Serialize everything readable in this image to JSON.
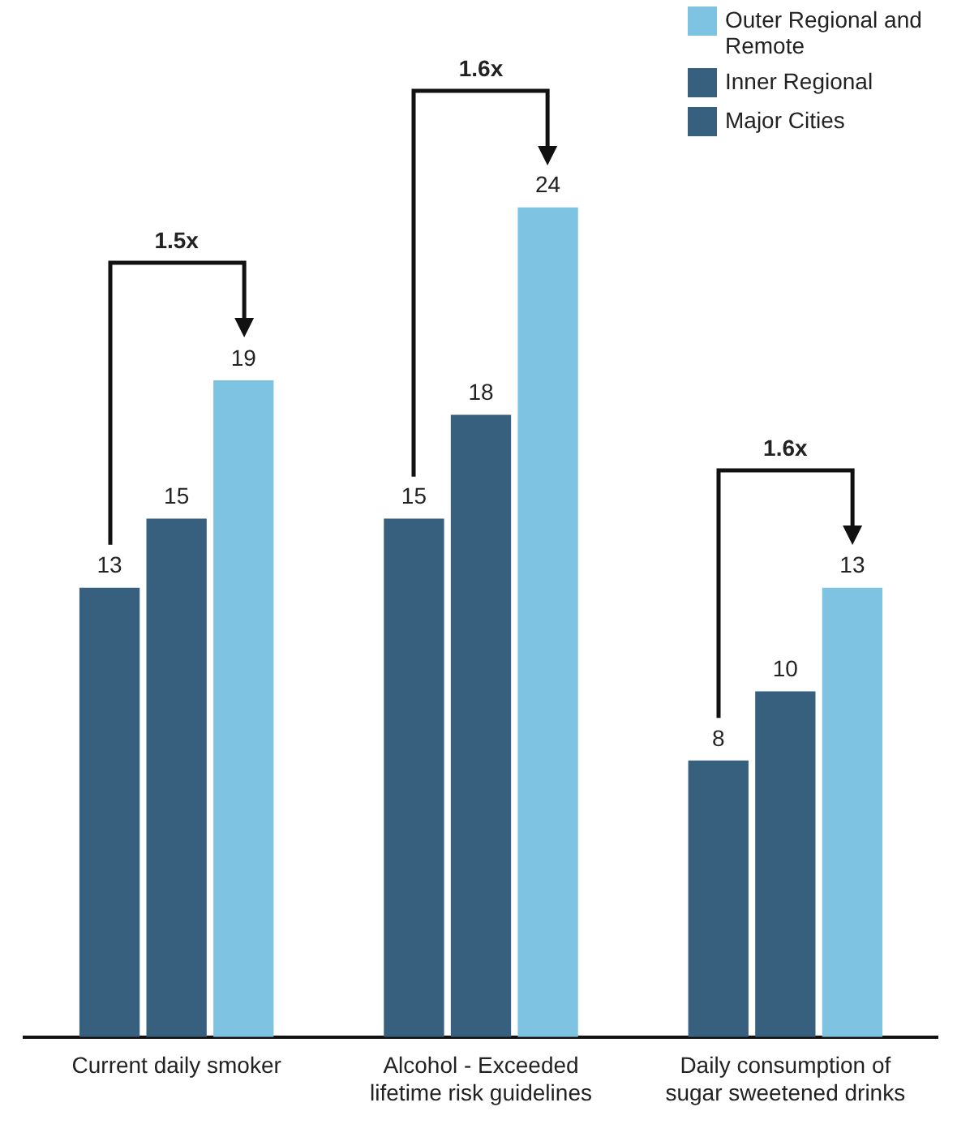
{
  "chart_data": {
    "type": "bar",
    "categories": [
      "Current daily smoker",
      "Alcohol - Exceeded lifetime risk guidelines",
      "Daily consumption of sugar sweetened drinks"
    ],
    "series": [
      {
        "name": "Major Cities",
        "color": "#37607f",
        "values": [
          13,
          15,
          8
        ]
      },
      {
        "name": "Inner Regional",
        "color": "#37607f",
        "values": [
          15,
          18,
          10
        ]
      },
      {
        "name": "Outer Regional and Remote",
        "color": "#7fc3e3",
        "values": [
          19,
          24,
          13
        ]
      }
    ],
    "data_labels": true,
    "legend": "top right",
    "grid": false,
    "annotations": [
      "1.5x",
      "1.6x",
      "1.6x"
    ]
  }
}
